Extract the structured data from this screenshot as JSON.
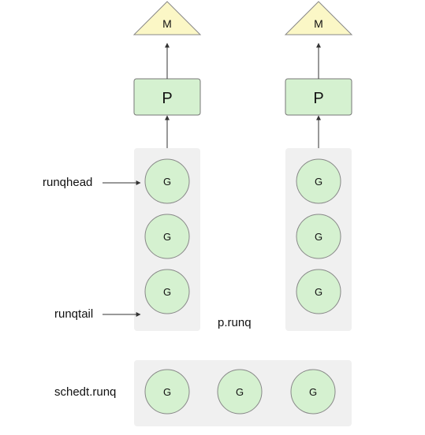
{
  "machines": [
    {
      "label": "M"
    },
    {
      "label": "M"
    }
  ],
  "processors": [
    {
      "label": "P"
    },
    {
      "label": "P"
    }
  ],
  "local_queues": [
    {
      "goroutines": [
        "G",
        "G",
        "G"
      ]
    },
    {
      "goroutines": [
        "G",
        "G",
        "G"
      ]
    }
  ],
  "labels": {
    "runqhead": "runqhead",
    "runqtail": "runqtail",
    "p_runq": "p.runq",
    "sched_runq": "schedt.runq"
  },
  "global_queue": {
    "goroutines": [
      "G",
      "G",
      "G"
    ]
  },
  "colors": {
    "machine_fill": "#fbf7c6",
    "processor_fill": "#d5f1d0",
    "goroutine_fill": "#d5f1d0",
    "queue_bg": "#f0f0f0",
    "stroke": "#555555"
  }
}
